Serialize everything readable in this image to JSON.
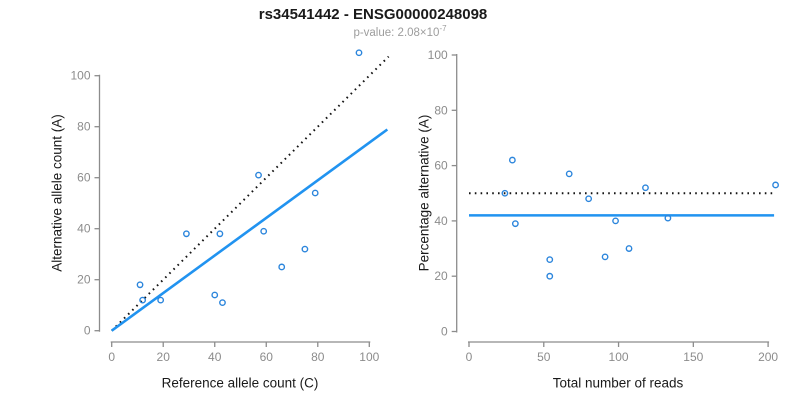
{
  "header": {
    "title": "rs34541442 - ENSG00000248098",
    "subtitle_prefix": "p-value: 2.08×10",
    "subtitle_exponent": "-7"
  },
  "colors": {
    "accent_line": "#2193f0",
    "point_stroke": "#2b85dc",
    "reference_line": "#141414",
    "axis": "#8c8c8c",
    "tick_label": "#8c8c8c",
    "background": "#ffffff"
  },
  "chart_data": [
    {
      "type": "scatter",
      "name": "allele-counts-scatter",
      "title": "",
      "xlabel": "Reference allele count (C)",
      "ylabel": "Alternative allele count (A)",
      "xticks": [
        0,
        20,
        40,
        60,
        80,
        100
      ],
      "yticks": [
        0,
        20,
        40,
        60,
        80,
        100
      ],
      "xlim": [
        0,
        107
      ],
      "ylim": [
        0,
        110
      ],
      "grid": false,
      "points": [
        [
          11,
          18
        ],
        [
          12,
          12
        ],
        [
          19,
          12
        ],
        [
          29,
          38
        ],
        [
          40,
          14
        ],
        [
          42,
          38
        ],
        [
          43,
          11
        ],
        [
          57,
          61
        ],
        [
          59,
          39
        ],
        [
          66,
          25
        ],
        [
          75,
          32
        ],
        [
          79,
          54
        ],
        [
          96,
          109
        ]
      ],
      "lines": [
        {
          "name": "identity-line",
          "style": "dotted",
          "color": "reference",
          "width": 2,
          "from": [
            0,
            0
          ],
          "to": [
            107.5,
            107.5
          ]
        },
        {
          "name": "regression-line",
          "style": "solid",
          "color": "accent",
          "width": 2.6,
          "from": [
            0,
            0
          ],
          "to": [
            107,
            78.9
          ]
        }
      ],
      "layout": {
        "x0": 111.7,
        "xs": 2.576,
        "y0": 330.7,
        "ys": 2.55,
        "vx": 99.5,
        "hy": 342,
        "xlabel_cx": 240,
        "xlabel_cy": 383,
        "ylabel_cx": 57,
        "ylabel_cy": 193
      }
    },
    {
      "type": "scatter",
      "name": "percentage-vs-reads-scatter",
      "title": "",
      "xlabel": "Total number of reads",
      "ylabel": "Percentage alternative (A)",
      "xticks": [
        0,
        50,
        100,
        150,
        200
      ],
      "yticks": [
        0,
        20,
        40,
        60,
        80,
        100
      ],
      "xlim": [
        0,
        205
      ],
      "ylim": [
        0,
        100
      ],
      "grid": false,
      "points": [
        [
          24,
          50
        ],
        [
          29,
          62
        ],
        [
          31,
          39
        ],
        [
          54,
          26
        ],
        [
          54,
          20
        ],
        [
          67,
          57
        ],
        [
          80,
          48
        ],
        [
          91,
          27
        ],
        [
          98,
          40
        ],
        [
          107,
          30
        ],
        [
          118,
          52
        ],
        [
          133,
          41
        ],
        [
          205,
          53
        ]
      ],
      "lines": [
        {
          "name": "fifty-percent-line",
          "style": "dotted",
          "color": "reference",
          "width": 2,
          "from": [
            0,
            50
          ],
          "to": [
            204,
            50
          ]
        },
        {
          "name": "mean-percentage-line",
          "style": "solid",
          "color": "accent",
          "width": 2.6,
          "from": [
            0,
            42
          ],
          "to": [
            204,
            42
          ]
        }
      ],
      "layout": {
        "x0": 469,
        "xs": 1.4955,
        "y0": 331.5,
        "ys": 2.765,
        "vx": 456.7,
        "hy": 342,
        "xlabel_cx": 618,
        "xlabel_cy": 383,
        "ylabel_cx": 424,
        "ylabel_cy": 193
      }
    }
  ]
}
